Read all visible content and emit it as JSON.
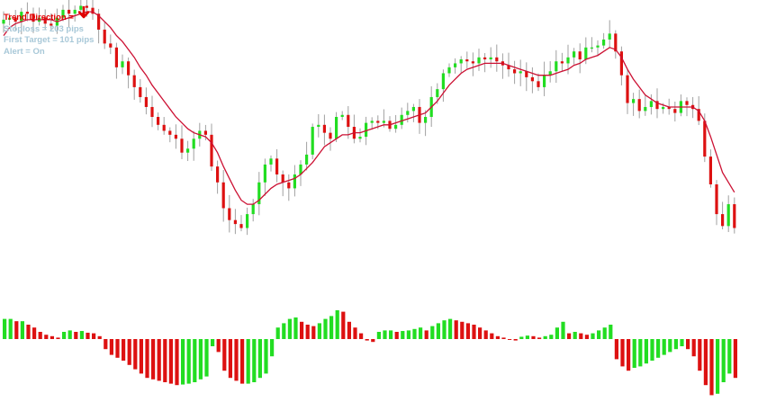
{
  "info": {
    "trend_label": "Trend Direction =",
    "trend_arrow_icon": "arrow-down-icon",
    "stoploss": "Stoploss = 203 pips",
    "first_target": "First Target = 101 pips",
    "alert": "Alert = On"
  },
  "colors": {
    "bull": "#22dd22",
    "bear": "#dd1111",
    "wick": "#a0a0a0",
    "moving_average": "#cc1133",
    "trend_arrow": "#e00000",
    "info_text_muted": "#a8c8d8"
  },
  "chart_data": [
    {
      "type": "candlestick",
      "overlay": "moving-average",
      "grid": false,
      "closes": [
        8.8,
        8.9,
        8.7,
        9.2,
        9.1,
        8.7,
        8.9,
        8.6,
        8.5,
        8.9,
        9.3,
        9.1,
        9.3,
        9.5,
        9.4,
        9.1,
        8.3,
        7.6,
        7.4,
        6.4,
        6.7,
        6.0,
        5.4,
        4.9,
        4.4,
        3.9,
        3.5,
        3.2,
        3.0,
        2.8,
        2.1,
        2.3,
        2.8,
        3.2,
        3.0,
        1.4,
        0.6,
        -0.7,
        -1.3,
        -1.5,
        -1.7,
        -1.0,
        -0.5,
        0.6,
        1.5,
        1.8,
        1.0,
        0.6,
        0.3,
        1.0,
        1.5,
        2.0,
        3.4,
        3.5,
        3.1,
        2.8,
        3.9,
        4.0,
        3.4,
        2.8,
        2.9,
        3.6,
        3.7,
        3.6,
        3.7,
        3.3,
        3.5,
        4.0,
        4.2,
        4.4,
        3.6,
        3.9,
        4.9,
        5.3,
        6.1,
        6.4,
        6.6,
        6.8,
        6.7,
        6.6,
        6.9,
        6.8,
        6.9,
        6.7,
        6.5,
        6.3,
        6.1,
        6.2,
        5.9,
        5.7,
        5.4,
        6.0,
        6.2,
        6.7,
        6.6,
        6.9,
        7.2,
        6.8,
        7.4,
        7.4,
        7.5,
        7.8,
        8.1,
        7.2,
        6.0,
        4.6,
        4.8,
        4.2,
        4.4,
        4.7,
        4.3,
        4.4,
        4.3,
        4.1,
        4.7,
        4.5,
        4.3,
        3.7,
        1.9,
        0.5,
        -1.0,
        -1.6,
        -0.5,
        -1.7
      ],
      "ma_values": [
        8.0,
        8.4,
        8.6,
        8.7,
        8.8,
        8.8,
        8.8,
        8.8,
        8.8,
        8.7,
        8.8,
        8.9,
        9.0,
        9.1,
        9.2,
        9.2,
        9.0,
        8.7,
        8.4,
        8.0,
        7.7,
        7.3,
        6.9,
        6.4,
        6.0,
        5.5,
        5.1,
        4.7,
        4.3,
        3.9,
        3.6,
        3.3,
        3.1,
        3.0,
        2.9,
        2.6,
        2.1,
        1.4,
        0.8,
        0.2,
        -0.3,
        -0.5,
        -0.5,
        -0.3,
        0.0,
        0.3,
        0.5,
        0.6,
        0.7,
        0.8,
        1.0,
        1.3,
        1.6,
        2.0,
        2.4,
        2.6,
        2.8,
        3.0,
        3.0,
        3.1,
        3.1,
        3.2,
        3.3,
        3.4,
        3.5,
        3.5,
        3.6,
        3.7,
        3.8,
        3.9,
        4.0,
        4.1,
        4.4,
        4.7,
        5.1,
        5.5,
        5.8,
        6.1,
        6.3,
        6.4,
        6.5,
        6.6,
        6.6,
        6.6,
        6.6,
        6.5,
        6.4,
        6.3,
        6.2,
        6.1,
        6.0,
        6.0,
        6.0,
        6.1,
        6.2,
        6.3,
        6.5,
        6.6,
        6.8,
        6.9,
        7.0,
        7.2,
        7.4,
        7.3,
        6.9,
        6.3,
        5.8,
        5.4,
        5.0,
        4.8,
        4.6,
        4.5,
        4.4,
        4.4,
        4.4,
        4.4,
        4.4,
        4.2,
        3.7,
        2.9,
        2.0,
        1.1,
        0.6,
        0.1
      ]
    },
    {
      "type": "histogram",
      "baseline": 0,
      "values": [
        0.7,
        0.7,
        0.62,
        0.62,
        0.5,
        0.4,
        0.25,
        0.15,
        0.1,
        0.05,
        0.25,
        0.3,
        0.25,
        0.28,
        0.22,
        0.2,
        0.1,
        -0.35,
        -0.55,
        -0.65,
        -0.75,
        -0.9,
        -1.05,
        -1.2,
        -1.35,
        -1.4,
        -1.45,
        -1.5,
        -1.55,
        -1.6,
        -1.58,
        -1.55,
        -1.5,
        -1.4,
        -1.3,
        -0.25,
        -0.45,
        -1.1,
        -1.35,
        -1.45,
        -1.55,
        -1.55,
        -1.5,
        -1.35,
        -1.2,
        -0.6,
        0.4,
        0.55,
        0.7,
        0.75,
        0.6,
        0.5,
        0.45,
        0.55,
        0.7,
        0.8,
        1.0,
        0.95,
        0.6,
        0.4,
        0.2,
        -0.05,
        -0.1,
        0.25,
        0.3,
        0.3,
        0.25,
        0.28,
        0.3,
        0.35,
        0.4,
        0.3,
        0.45,
        0.55,
        0.65,
        0.7,
        0.65,
        0.6,
        0.55,
        0.5,
        0.4,
        0.3,
        0.2,
        0.1,
        0.05,
        -0.03,
        -0.05,
        0.08,
        0.12,
        0.1,
        0.05,
        0.1,
        0.15,
        0.4,
        0.6,
        0.2,
        0.25,
        0.2,
        0.15,
        0.2,
        0.3,
        0.4,
        0.5,
        -0.7,
        -0.95,
        -1.1,
        -1.0,
        -0.95,
        -0.85,
        -0.75,
        -0.65,
        -0.55,
        -0.45,
        -0.35,
        -0.25,
        -0.35,
        -0.6,
        -1.1,
        -1.6,
        -1.95,
        -1.9,
        -1.5,
        -1.2,
        -1.35
      ]
    }
  ]
}
